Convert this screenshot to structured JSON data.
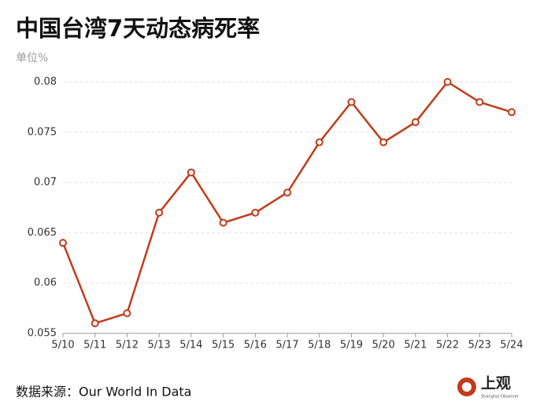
{
  "chart_data": {
    "type": "line",
    "title": "中国台湾7天动态病死率",
    "y_label": "单位%",
    "categories": [
      "5/10",
      "5/11",
      "5/12",
      "5/13",
      "5/14",
      "5/15",
      "5/16",
      "5/17",
      "5/18",
      "5/19",
      "5/20",
      "5/21",
      "5/22",
      "5/23",
      "5/24"
    ],
    "values": [
      0.064,
      0.056,
      0.057,
      0.067,
      0.071,
      0.066,
      0.067,
      0.069,
      0.074,
      0.078,
      0.074,
      0.076,
      0.08,
      0.078,
      0.077
    ],
    "color": "#c23b1a",
    "ylim": [
      0.055,
      0.08
    ],
    "yticks": [
      0.055,
      0.06,
      0.065,
      0.07,
      0.075,
      0.08
    ],
    "grid": true,
    "source": "数据来源：Our World In Data"
  },
  "logo": {
    "name": "上观",
    "subtitle": "Shanghai Observer"
  }
}
